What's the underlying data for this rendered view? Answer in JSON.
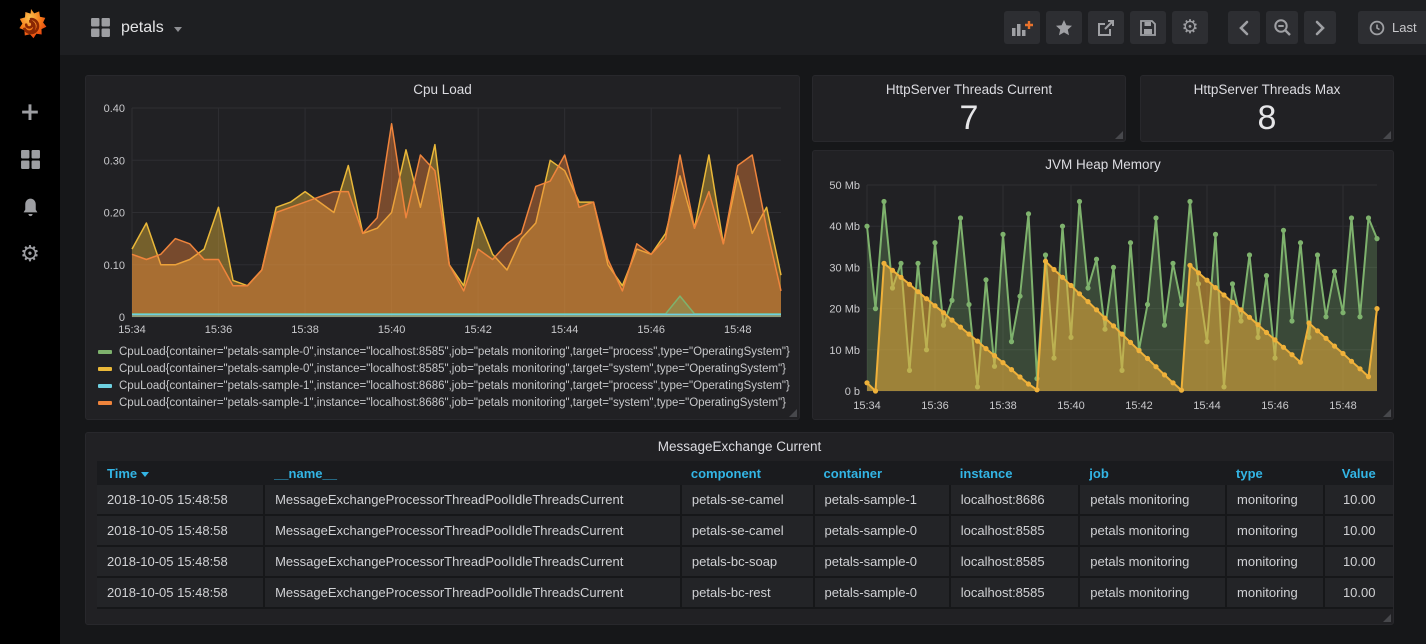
{
  "navbar": {
    "dashboard_title": "petals",
    "time_label": "Last",
    "toolbar_buttons": [
      {
        "icon": "add-panel"
      },
      {
        "icon": "star"
      },
      {
        "icon": "share"
      },
      {
        "icon": "save"
      },
      {
        "icon": "settings"
      },
      {
        "icon": "move-back"
      },
      {
        "icon": "zoom-out"
      },
      {
        "icon": "move-forward"
      }
    ]
  },
  "sidebar": {
    "items": [
      {
        "icon": "plus"
      },
      {
        "icon": "dashboards-grid"
      },
      {
        "icon": "alerting-bell"
      },
      {
        "icon": "settings-gear"
      }
    ]
  },
  "colors": {
    "green": "#7EB26D",
    "yellow": "#EAB839",
    "blue": "#6ED0E0",
    "orange": "#EF843C",
    "link_blue": "#33b5e5",
    "panel_bg": "#212124",
    "page_bg": "#161719"
  },
  "panels": {
    "cpu": {
      "title": "Cpu Load"
    },
    "threads_current": {
      "title": "HttpServer Threads Current",
      "value": "7"
    },
    "threads_max": {
      "title": "HttpServer Threads Max",
      "value": "8"
    },
    "jvm": {
      "title": "JVM Heap Memory"
    },
    "table": {
      "title": "MessageExchange Current",
      "columns": [
        "Time",
        "__name__",
        "component",
        "container",
        "instance",
        "job",
        "type",
        "Value"
      ],
      "sorted_column": 0,
      "rows": [
        [
          "2018-10-05 15:48:58",
          "MessageExchangeProcessorThreadPoolIdleThreadsCurrent",
          "petals-se-camel",
          "petals-sample-1",
          "localhost:8686",
          "petals monitoring",
          "monitoring",
          "10.00"
        ],
        [
          "2018-10-05 15:48:58",
          "MessageExchangeProcessorThreadPoolIdleThreadsCurrent",
          "petals-se-camel",
          "petals-sample-0",
          "localhost:8585",
          "petals monitoring",
          "monitoring",
          "10.00"
        ],
        [
          "2018-10-05 15:48:58",
          "MessageExchangeProcessorThreadPoolIdleThreadsCurrent",
          "petals-bc-soap",
          "petals-sample-0",
          "localhost:8585",
          "petals monitoring",
          "monitoring",
          "10.00"
        ],
        [
          "2018-10-05 15:48:58",
          "MessageExchangeProcessorThreadPoolIdleThreadsCurrent",
          "petals-bc-rest",
          "petals-sample-0",
          "localhost:8585",
          "petals monitoring",
          "monitoring",
          "10.00"
        ]
      ]
    }
  },
  "chart_data": [
    {
      "type": "line",
      "title": "Cpu Load",
      "domain_minutes": 15,
      "x_ticks": [
        {
          "label": "15:34",
          "value": 0
        },
        {
          "label": "15:36",
          "value": 2
        },
        {
          "label": "15:38",
          "value": 4
        },
        {
          "label": "15:40",
          "value": 6
        },
        {
          "label": "15:42",
          "value": 8
        },
        {
          "label": "15:44",
          "value": 10
        },
        {
          "label": "15:46",
          "value": 12
        },
        {
          "label": "15:48",
          "value": 14
        }
      ],
      "ylim": [
        0,
        0.4
      ],
      "y_ticks": [
        {
          "label": "0",
          "value": 0
        },
        {
          "label": "0.10",
          "value": 0.1
        },
        {
          "label": "0.20",
          "value": 0.2
        },
        {
          "label": "0.30",
          "value": 0.3
        },
        {
          "label": "0.40",
          "value": 0.4
        }
      ],
      "legend_order": [
        2,
        0,
        3,
        1
      ],
      "series": [
        {
          "name": "CpuLoad{container=\"petals-sample-0\",instance=\"localhost:8585\",job=\"petals monitoring\",target=\"system\",type=\"OperatingSystem\"}",
          "color": "#EAB839",
          "fill_opacity": 0.42,
          "width": 1.5,
          "dots": false,
          "values": [
            0.13,
            0.18,
            0.1,
            0.1,
            0.11,
            0.13,
            0.21,
            0.07,
            0.06,
            0.09,
            0.21,
            0.22,
            0.24,
            0.22,
            0.2,
            0.29,
            0.16,
            0.17,
            0.2,
            0.32,
            0.21,
            0.33,
            0.1,
            0.06,
            0.19,
            0.12,
            0.09,
            0.15,
            0.18,
            0.3,
            0.28,
            0.22,
            0.22,
            0.1,
            0.06,
            0.13,
            0.12,
            0.16,
            0.27,
            0.17,
            0.31,
            0.14,
            0.27,
            0.16,
            0.21,
            0.08
          ]
        },
        {
          "name": "CpuLoad{container=\"petals-sample-1\",instance=\"localhost:8686\",job=\"petals monitoring\",target=\"system\",type=\"OperatingSystem\"}",
          "color": "#EF843C",
          "fill_opacity": 0.42,
          "width": 1.5,
          "dots": false,
          "values": [
            0.12,
            0.11,
            0.12,
            0.15,
            0.14,
            0.11,
            0.11,
            0.06,
            0.06,
            0.09,
            0.2,
            0.21,
            0.22,
            0.23,
            0.24,
            0.24,
            0.16,
            0.19,
            0.37,
            0.19,
            0.31,
            0.28,
            0.1,
            0.05,
            0.13,
            0.11,
            0.14,
            0.16,
            0.25,
            0.26,
            0.31,
            0.21,
            0.22,
            0.11,
            0.05,
            0.14,
            0.12,
            0.15,
            0.31,
            0.17,
            0.24,
            0.14,
            0.29,
            0.31,
            0.17,
            0.05
          ]
        },
        {
          "name": "CpuLoad{container=\"petals-sample-0\",instance=\"localhost:8585\",job=\"petals monitoring\",target=\"process\",type=\"OperatingSystem\"}",
          "color": "#7EB26D",
          "fill_opacity": 0.35,
          "width": 1.5,
          "dots": false,
          "values": [
            0.006,
            0.006,
            0.006,
            0.006,
            0.006,
            0.006,
            0.006,
            0.006,
            0.006,
            0.006,
            0.006,
            0.006,
            0.006,
            0.006,
            0.006,
            0.006,
            0.006,
            0.006,
            0.006,
            0.006,
            0.006,
            0.006,
            0.006,
            0.006,
            0.006,
            0.006,
            0.006,
            0.006,
            0.006,
            0.006,
            0.006,
            0.006,
            0.006,
            0.006,
            0.006,
            0.006,
            0.006,
            0.006,
            0.04,
            0.006,
            0.006,
            0.006,
            0.006,
            0.006,
            0.006,
            0.006
          ]
        },
        {
          "name": "CpuLoad{container=\"petals-sample-1\",instance=\"localhost:8686\",job=\"petals monitoring\",target=\"process\",type=\"OperatingSystem\"}",
          "color": "#6ED0E0",
          "fill_opacity": 0.3,
          "width": 1.5,
          "dots": false,
          "values": [
            0.005,
            0.005,
            0.005,
            0.005,
            0.005,
            0.005,
            0.005,
            0.005,
            0.005,
            0.005,
            0.005,
            0.005,
            0.005,
            0.005,
            0.005,
            0.005,
            0.005,
            0.005,
            0.005,
            0.005,
            0.005,
            0.005,
            0.005,
            0.005,
            0.005,
            0.005,
            0.005,
            0.005,
            0.005,
            0.005,
            0.005,
            0.005,
            0.005,
            0.005,
            0.005,
            0.005,
            0.005,
            0.005,
            0.005,
            0.005,
            0.005,
            0.005,
            0.005,
            0.005,
            0.005,
            0.005
          ]
        }
      ]
    },
    {
      "type": "line",
      "title": "JVM Heap Memory",
      "domain_minutes": 15,
      "x_ticks": [
        {
          "label": "15:34",
          "value": 0
        },
        {
          "label": "15:36",
          "value": 2
        },
        {
          "label": "15:38",
          "value": 4
        },
        {
          "label": "15:40",
          "value": 6
        },
        {
          "label": "15:42",
          "value": 8
        },
        {
          "label": "15:44",
          "value": 10
        },
        {
          "label": "15:46",
          "value": 12
        },
        {
          "label": "15:48",
          "value": 14
        }
      ],
      "ylim": [
        0,
        50
      ],
      "y_ticks": [
        {
          "label": "0 b",
          "value": 0
        },
        {
          "label": "10 Mb",
          "value": 10
        },
        {
          "label": "20 Mb",
          "value": 20
        },
        {
          "label": "30 Mb",
          "value": 30
        },
        {
          "label": "40 Mb",
          "value": 40
        },
        {
          "label": "50 Mb",
          "value": 50
        }
      ],
      "legend_order": [],
      "series": [
        {
          "name": "",
          "color": "#7EB26D",
          "fill_opacity": 0.28,
          "width": 2,
          "dots": true,
          "values": [
            40,
            20,
            46,
            25,
            31,
            5,
            31,
            10,
            36,
            16,
            22,
            42,
            21,
            1,
            27,
            6,
            38,
            12,
            23,
            43,
            3,
            33,
            8,
            40,
            13,
            46,
            25,
            32,
            15,
            30,
            5,
            36,
            10,
            21,
            42,
            16,
            31,
            21,
            46,
            26,
            12,
            38,
            1,
            26,
            17,
            33,
            13,
            28,
            8,
            39,
            17,
            36,
            13,
            33,
            18,
            29,
            19,
            42,
            18,
            42,
            37
          ]
        },
        {
          "name": "",
          "color": "#EFB13A",
          "fill_opacity": 0.55,
          "width": 2,
          "dots": true,
          "values": [
            2,
            0,
            31,
            29.3,
            27.6,
            25.9,
            24.1,
            22.4,
            20.7,
            19,
            17.2,
            15.5,
            13.8,
            12.1,
            10.3,
            8.6,
            6.9,
            5.2,
            3.4,
            1.7,
            0.3,
            31.5,
            29.5,
            27.6,
            25.6,
            23.6,
            21.7,
            19.7,
            17.7,
            15.8,
            13.8,
            11.8,
            9.8,
            7.9,
            5.9,
            3.9,
            2,
            0.2,
            30.5,
            28.7,
            26.9,
            25.1,
            23.3,
            21.5,
            19.7,
            17.9,
            16.1,
            14.2,
            12.4,
            10.6,
            8.8,
            7,
            16.5,
            14.6,
            12.8,
            10.9,
            9.1,
            7.2,
            5.4,
            3.5,
            20
          ]
        }
      ]
    }
  ]
}
